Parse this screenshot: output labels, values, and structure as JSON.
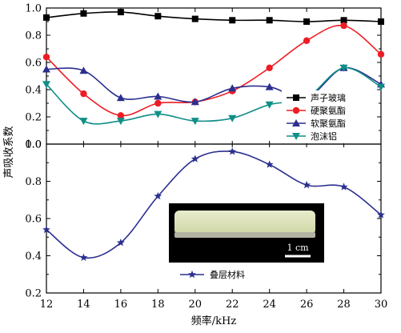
{
  "chart_data": [
    {
      "type": "line",
      "panel": "top",
      "x": [
        12,
        14,
        16,
        18,
        20,
        22,
        24,
        26,
        28,
        30
      ],
      "xlim": [
        12,
        30
      ],
      "ylim": [
        0.0,
        1.0
      ],
      "yticks": [
        0.0,
        0.2,
        0.4,
        0.6,
        0.8,
        1.0
      ],
      "legend_position": "right",
      "series": [
        {
          "name": "声子玻璃",
          "marker": "square",
          "color": "#000000",
          "values": [
            0.93,
            0.96,
            0.97,
            0.94,
            0.92,
            0.91,
            0.91,
            0.9,
            0.91,
            0.9
          ]
        },
        {
          "name": "硬聚氨酯",
          "marker": "circle",
          "color": "#ee1c24",
          "values": [
            0.64,
            0.37,
            0.21,
            0.3,
            0.31,
            0.39,
            0.56,
            0.76,
            0.87,
            0.66
          ]
        },
        {
          "name": "软聚氨酯",
          "marker": "triangle-up",
          "color": "#2b2f8f",
          "values": [
            0.55,
            0.54,
            0.34,
            0.35,
            0.31,
            0.41,
            0.42,
            0.34,
            0.56,
            0.44
          ]
        },
        {
          "name": "泡沫铝",
          "marker": "triangle-down",
          "color": "#0f8f87",
          "values": [
            0.44,
            0.17,
            0.17,
            0.22,
            0.17,
            0.19,
            0.29,
            0.34,
            0.56,
            0.42
          ]
        }
      ]
    },
    {
      "type": "line",
      "panel": "bottom",
      "x": [
        12,
        14,
        16,
        18,
        20,
        22,
        24,
        26,
        28,
        30
      ],
      "xlim": [
        12,
        30
      ],
      "ylim": [
        0.2,
        1.0
      ],
      "yticks": [
        0.2,
        0.4,
        0.6,
        0.8,
        1.0
      ],
      "xticks": [
        12,
        14,
        16,
        18,
        20,
        22,
        24,
        26,
        28,
        30
      ],
      "legend_position": "bottom-center",
      "series": [
        {
          "name": "叠层材料",
          "marker": "star",
          "color": "#2b2f8f",
          "values": [
            0.54,
            0.39,
            0.47,
            0.72,
            0.92,
            0.96,
            0.89,
            0.78,
            0.77,
            0.62
          ]
        }
      ]
    }
  ],
  "axes": {
    "xlabel": "频率/kHz",
    "ylabel": "声吸收系数"
  },
  "inset": {
    "scale_label": "1 cm"
  }
}
